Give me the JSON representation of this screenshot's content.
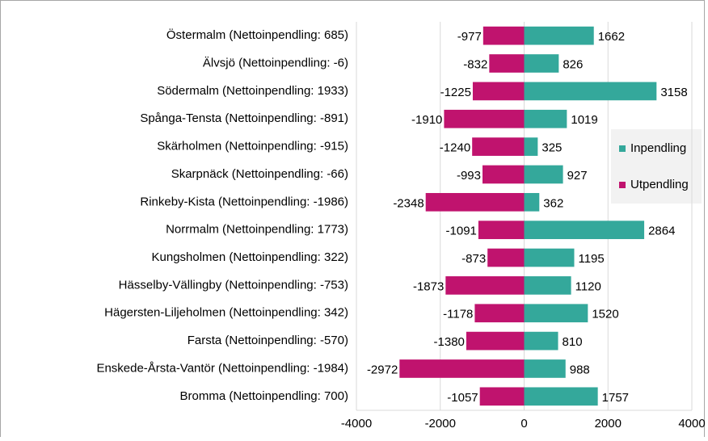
{
  "chart_data": {
    "type": "bar",
    "orientation": "horizontal",
    "categories": [
      "Östermalm (Nettoinpendling: 685)",
      "Älvsjö (Nettoinpendling: -6)",
      "Södermalm (Nettoinpendling: 1933)",
      "Spånga-Tensta (Nettoinpendling: -891)",
      "Skärholmen (Nettoinpendling: -915)",
      "Skarpnäck (Nettoinpendling: -66)",
      "Rinkeby-Kista (Nettoinpendling: -1986)",
      "Norrmalm (Nettoinpendling: 1773)",
      "Kungsholmen (Nettoinpendling: 322)",
      "Hässelby-Vällingby (Nettoinpendling: -753)",
      "Hägersten-Liljeholmen (Nettoinpendling: 342)",
      "Farsta (Nettoinpendling: -570)",
      "Enskede-Årsta-Vantör (Nettoinpendling: -1984)",
      "Bromma (Nettoinpendling: 700)"
    ],
    "series": [
      {
        "name": "Inpendling",
        "color": "#34a89b",
        "values": [
          1662,
          826,
          3158,
          1019,
          325,
          927,
          362,
          2864,
          1195,
          1120,
          1520,
          810,
          988,
          1757
        ]
      },
      {
        "name": "Utpendling",
        "color": "#c0136e",
        "values": [
          -977,
          -832,
          -1225,
          -1910,
          -1240,
          -993,
          -2348,
          -1091,
          -873,
          -1873,
          -1178,
          -1380,
          -2972,
          -1057
        ]
      }
    ],
    "xlim": [
      -4000,
      4000
    ],
    "xticks": [
      -4000,
      -2000,
      0,
      2000,
      4000
    ],
    "grid": true,
    "legend": "right"
  }
}
